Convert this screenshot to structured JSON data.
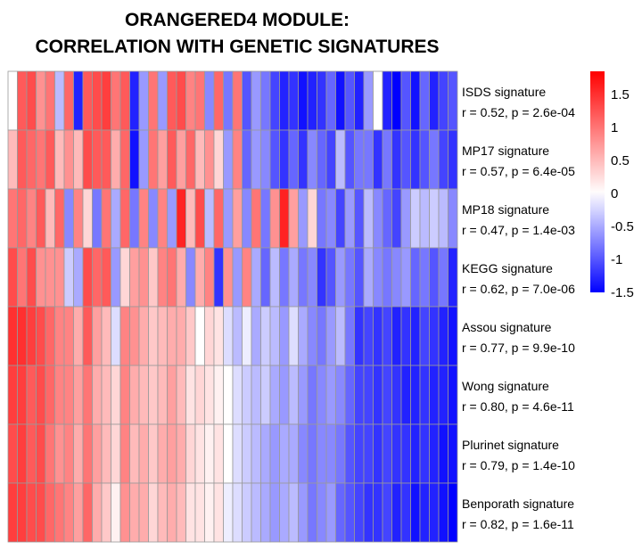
{
  "chart_data": {
    "type": "heatmap",
    "title_lines": [
      "ORANGERED4 MODULE:",
      "CORRELATION WITH GENETIC SIGNATURES"
    ],
    "rows": [
      {
        "label": "ISDS signature",
        "stat": "r = 0.52, p = 2.6e-04",
        "values": [
          0.0,
          1.2,
          1.3,
          0.8,
          1.0,
          -0.4,
          1.1,
          -1.3,
          1.2,
          1.3,
          1.4,
          1.0,
          1.2,
          -1.3,
          -0.6,
          1.0,
          -0.6,
          1.2,
          1.3,
          0.9,
          1.0,
          -0.7,
          1.1,
          -0.8,
          1.0,
          -1.0,
          -0.6,
          -0.8,
          -1.1,
          -1.3,
          -1.2,
          -1.4,
          -1.3,
          -1.2,
          -0.9,
          -1.4,
          -1.0,
          -1.3,
          -0.6,
          0.0,
          -1.3,
          -1.5,
          -1.0,
          -1.4,
          -0.9,
          -1.3,
          -1.1,
          -1.0
        ]
      },
      {
        "label": "MP17 signature",
        "stat": "r = 0.57, p = 6.4e-05",
        "values": [
          0.5,
          1.2,
          1.1,
          1.0,
          1.2,
          0.5,
          0.8,
          0.5,
          1.3,
          1.2,
          1.2,
          0.6,
          1.1,
          -1.4,
          -0.6,
          1.0,
          0.7,
          1.2,
          0.7,
          1.1,
          0.5,
          0.8,
          0.3,
          -0.6,
          0.9,
          -0.9,
          -0.6,
          -0.7,
          -1.0,
          -1.2,
          -0.9,
          -1.2,
          -0.7,
          -0.9,
          -1.1,
          -0.4,
          -1.0,
          -0.8,
          -0.8,
          -1.2,
          -0.8,
          -1.2,
          -1.0,
          -1.2,
          -1.0,
          -0.8,
          -1.1,
          -1.2
        ]
      },
      {
        "label": "MP18 signature",
        "stat": "r = 0.47, p = 1.4e-03",
        "values": [
          1.0,
          1.1,
          0.9,
          1.2,
          0.5,
          1.1,
          -0.7,
          0.9,
          0.3,
          -0.8,
          1.0,
          -0.5,
          1.1,
          -0.8,
          0.9,
          -0.7,
          0.9,
          -0.6,
          1.6,
          0.5,
          1.3,
          -0.4,
          1.1,
          -0.6,
          0.7,
          -0.7,
          1.0,
          -0.8,
          0.8,
          1.6,
          0.7,
          -0.6,
          0.3,
          -0.8,
          -0.7,
          -1.1,
          -0.6,
          -1.0,
          -0.4,
          -0.7,
          -0.9,
          -1.1,
          -0.6,
          -0.3,
          -0.4,
          -0.3,
          -0.4,
          -0.7
        ]
      },
      {
        "label": "KEGG signature",
        "stat": "r = 0.62, p = 7.0e-06",
        "values": [
          1.3,
          1.0,
          1.3,
          0.8,
          0.8,
          0.8,
          -0.3,
          -0.5,
          1.3,
          1.1,
          1.2,
          -0.6,
          0.3,
          0.7,
          0.8,
          0.4,
          0.9,
          1.0,
          0.6,
          -0.7,
          0.6,
          0.9,
          -1.2,
          0.8,
          -0.6,
          0.9,
          -0.5,
          -0.9,
          -0.4,
          -0.8,
          -0.5,
          -0.8,
          -0.7,
          -1.2,
          -1.0,
          -0.6,
          -0.8,
          -1.0,
          -0.5,
          -0.7,
          -0.8,
          -0.7,
          -0.6,
          -0.9,
          -0.8,
          -1.0,
          -0.8,
          -1.3
        ]
      },
      {
        "label": "Assou signature",
        "stat": "r = 0.77, p = 9.9e-10",
        "values": [
          1.5,
          1.5,
          1.4,
          1.3,
          1.1,
          0.9,
          0.9,
          0.6,
          1.2,
          0.7,
          0.5,
          -0.2,
          0.9,
          0.8,
          0.6,
          0.4,
          0.5,
          0.6,
          0.6,
          0.4,
          0.0,
          0.3,
          0.2,
          -0.2,
          -0.4,
          -0.1,
          -0.5,
          -0.3,
          -0.4,
          -0.6,
          -0.2,
          -0.5,
          -0.7,
          -0.8,
          -0.6,
          -0.4,
          -0.8,
          -1.2,
          -1.1,
          -1.2,
          -1.1,
          -1.3,
          -1.2,
          -1.3,
          -1.1,
          -1.2,
          -1.3,
          -1.4
        ]
      },
      {
        "label": "Wong signature",
        "stat": "r = 0.80, p = 4.6e-11",
        "values": [
          1.4,
          1.4,
          1.2,
          1.3,
          1.1,
          0.9,
          0.9,
          0.7,
          1.0,
          0.6,
          0.5,
          0.3,
          0.9,
          0.6,
          0.5,
          0.4,
          0.5,
          0.7,
          0.5,
          0.2,
          0.3,
          0.2,
          0.1,
          0.0,
          -0.2,
          -0.3,
          -0.4,
          -0.3,
          -0.5,
          -0.6,
          -0.4,
          -0.6,
          -0.8,
          -0.7,
          -0.6,
          -0.7,
          -0.9,
          -1.1,
          -1.1,
          -1.2,
          -1.1,
          -1.2,
          -1.3,
          -1.3,
          -1.2,
          -1.3,
          -1.3,
          -1.4
        ]
      },
      {
        "label": "Plurinet signature",
        "stat": "r = 0.79, p = 1.4e-10",
        "values": [
          1.3,
          1.4,
          1.2,
          1.3,
          1.0,
          0.8,
          0.9,
          0.6,
          1.0,
          0.7,
          0.5,
          0.3,
          0.9,
          0.5,
          0.6,
          0.4,
          0.6,
          0.7,
          0.6,
          0.3,
          0.2,
          0.1,
          0.2,
          0.0,
          -0.2,
          -0.3,
          -0.4,
          -0.5,
          -0.6,
          -0.5,
          -0.5,
          -0.7,
          -0.8,
          -0.7,
          -0.7,
          -0.8,
          -1.0,
          -1.1,
          -1.1,
          -1.2,
          -1.1,
          -1.2,
          -1.2,
          -1.3,
          -1.2,
          -1.3,
          -1.4,
          -1.4
        ]
      },
      {
        "label": "Benporath signature",
        "stat": "r = 0.82, p = 1.6e-11",
        "values": [
          1.4,
          1.4,
          1.3,
          1.3,
          1.1,
          1.0,
          0.9,
          0.7,
          1.1,
          0.6,
          0.4,
          0.1,
          0.8,
          0.6,
          0.6,
          0.3,
          0.5,
          0.6,
          0.5,
          0.2,
          0.2,
          0.1,
          0.2,
          -0.1,
          -0.2,
          -0.3,
          -0.4,
          -0.5,
          -0.6,
          -0.5,
          -0.4,
          -0.6,
          -0.8,
          -0.7,
          -0.6,
          -0.9,
          -1.0,
          -1.1,
          -1.2,
          -1.2,
          -1.1,
          -1.3,
          -1.2,
          -1.4,
          -1.3,
          -1.3,
          -1.4,
          -1.5
        ]
      }
    ],
    "colorbar": {
      "min": -1.5,
      "max": 1.85,
      "ticks": [
        1.5,
        1,
        0.5,
        0,
        -0.5,
        -1,
        -1.5
      ],
      "tick_labels": [
        "1.5",
        "1",
        "0.5",
        "0",
        "-0.5",
        "-1",
        "-1.5"
      ],
      "colors": {
        "low": "#0000ff",
        "mid": "#ffffff",
        "high": "#ff0000"
      }
    },
    "cell_border_color": "#999999"
  }
}
